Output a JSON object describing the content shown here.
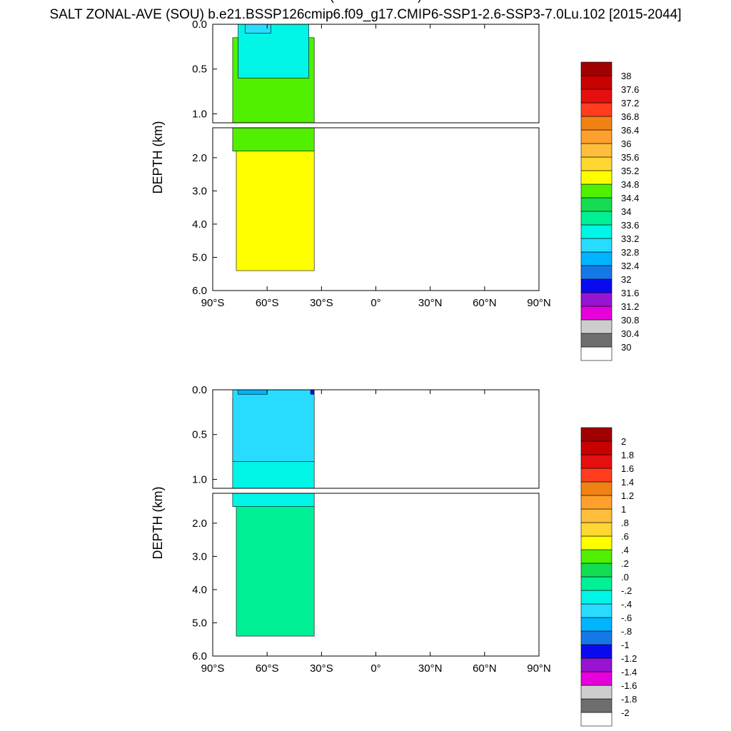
{
  "title": "SALT ZONAL-AVE (SOU) b.e21.BSSP126cmip6.f09_g17.CMIP6-SSP1-2.6-SSP3-7.0Lu.102 [2015-2044]",
  "colors": {
    "land": "#ffffff",
    "frame": "#000000"
  },
  "chart_data": [
    {
      "type": "heatmap",
      "subtitle": "",
      "ylabel": "DEPTH (km)",
      "xlabel": "",
      "x_ticks": [
        "90°S",
        "60°S",
        "30°S",
        "0°",
        "30°N",
        "60°N",
        "90°N"
      ],
      "x_range": [
        -90,
        90
      ],
      "y_ticks_upper": [
        "0.0",
        "0.5",
        "1.0"
      ],
      "y_ticks_lower": [
        "2.0",
        "3.0",
        "4.0",
        "5.0",
        "6.0"
      ],
      "y_range_upper_km": [
        0,
        1.1
      ],
      "y_range_lower_km": [
        1.1,
        6.0
      ],
      "colorbar": {
        "labels": [
          "30",
          "30.4",
          "30.8",
          "31.2",
          "31.6",
          "32",
          "32.4",
          "32.8",
          "33.2",
          "33.6",
          "34",
          "34.4",
          "34.8",
          "35.2",
          "35.6",
          "36",
          "36.4",
          "36.8",
          "37.2",
          "37.6",
          "38"
        ],
        "colors": [
          "#ffffff",
          "#6e6e6e",
          "#cdcdcd",
          "#e600dc",
          "#9614d2",
          "#0a0af0",
          "#1478e6",
          "#00b4ff",
          "#28dcff",
          "#00f5e6",
          "#00f096",
          "#14dc50",
          "#50f000",
          "#ffff00",
          "#ffd732",
          "#ffbe3c",
          "#ffa02d",
          "#f08214",
          "#ff3c1e",
          "#e60f0f",
          "#c80000",
          "#a00000"
        ]
      },
      "regions": [
        {
          "name": "salinity 35.2 (deep water)",
          "color": "#ffff00",
          "lat": [
            -77,
            -34
          ],
          "depth": [
            0.2,
            5.4
          ]
        },
        {
          "name": "salinity 34.8",
          "color": "#50f000",
          "lat": [
            -79,
            -34
          ],
          "depth": [
            0.15,
            1.8
          ]
        },
        {
          "name": "salinity 34.0",
          "color": "#00f5e6",
          "lat": [
            -76,
            -37
          ],
          "depth": [
            0,
            0.6
          ]
        },
        {
          "name": "salinity 33.6",
          "color": "#28dcff",
          "lat": [
            -72,
            -58
          ],
          "depth": [
            0,
            0.1
          ]
        }
      ]
    },
    {
      "type": "heatmap",
      "subtitle": "(MODEL - OBS)",
      "ylabel": "DEPTH (km)",
      "xlabel": "",
      "x_ticks": [
        "90°S",
        "60°S",
        "30°S",
        "0°",
        "30°N",
        "60°N",
        "90°N"
      ],
      "x_range": [
        -90,
        90
      ],
      "y_ticks_upper": [
        "0.0",
        "0.5",
        "1.0"
      ],
      "y_ticks_lower": [
        "2.0",
        "3.0",
        "4.0",
        "5.0",
        "6.0"
      ],
      "y_range_upper_km": [
        0,
        1.1
      ],
      "y_range_lower_km": [
        1.1,
        6.0
      ],
      "colorbar": {
        "labels": [
          "-2",
          "-1.8",
          "-1.6",
          "-1.4",
          "-1.2",
          "-1",
          "-.8",
          "-.6",
          "-.4",
          "-.2",
          ".0",
          ".2",
          ".4",
          ".6",
          ".8",
          "1",
          "1.2",
          "1.4",
          "1.6",
          "1.8",
          "2"
        ],
        "colors": [
          "#ffffff",
          "#6e6e6e",
          "#cdcdcd",
          "#e600dc",
          "#9614d2",
          "#0a0af0",
          "#1478e6",
          "#00b4ff",
          "#28dcff",
          "#00f5e6",
          "#00f096",
          "#14dc50",
          "#50f000",
          "#ffff00",
          "#ffd732",
          "#ffbe3c",
          "#ffa02d",
          "#f08214",
          "#ff3c1e",
          "#e60f0f",
          "#c80000",
          "#a00000"
        ]
      },
      "regions": [
        {
          "name": "difference 0.0 to 0.2",
          "color": "#00f096",
          "lat": [
            -77,
            -34
          ],
          "depth": [
            0.2,
            5.4
          ]
        },
        {
          "name": "difference -0.2 to 0.0",
          "color": "#00f5e6",
          "lat": [
            -79,
            -34
          ],
          "depth": [
            0.1,
            1.5
          ]
        },
        {
          "name": "difference -0.4 to -0.2",
          "color": "#28dcff",
          "lat": [
            -79,
            -34
          ],
          "depth": [
            0,
            0.8
          ]
        },
        {
          "name": "difference -0.6 to -0.4",
          "color": "#00b4ff",
          "lat": [
            -76,
            -60
          ],
          "depth": [
            0,
            0.05
          ]
        },
        {
          "name": "difference below -1.0",
          "color": "#0a0af0",
          "lat": [
            -36,
            -34
          ],
          "depth": [
            0,
            0.05
          ]
        }
      ]
    }
  ]
}
